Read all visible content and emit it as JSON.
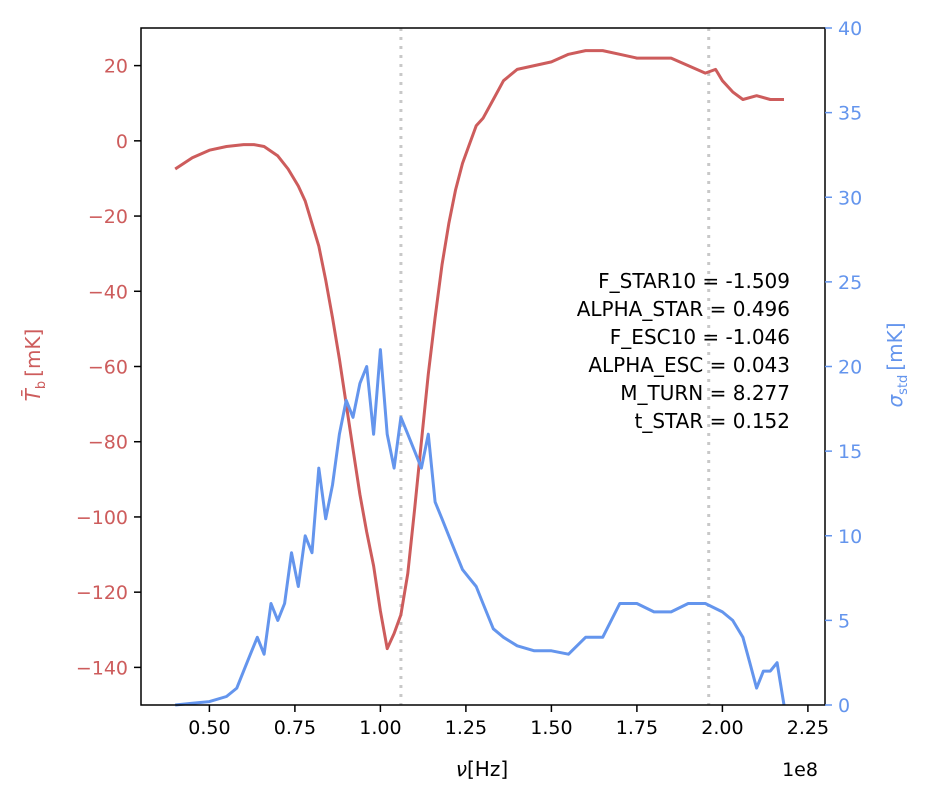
{
  "chart_data": {
    "type": "line",
    "xlabel_symbol": "ν",
    "xlabel_unit": "[Hz]",
    "x_offset_text": "1e8",
    "xlim": [
      0.3,
      2.3
    ],
    "x_ticks": [
      0.5,
      0.75,
      1.0,
      1.25,
      1.5,
      1.75,
      2.0,
      2.25
    ],
    "x_tick_labels": [
      "0.50",
      "0.75",
      "1.00",
      "1.25",
      "1.50",
      "1.75",
      "2.00",
      "2.25"
    ],
    "ylabel_left_symbol": "T̄",
    "ylabel_left_sub": "b",
    "ylabel_left_unit": "[mK]",
    "ylim_left": [
      -150,
      30
    ],
    "y_left_ticks": [
      20,
      0,
      -20,
      -40,
      -60,
      -80,
      -100,
      -120,
      -140
    ],
    "y_left_tick_labels": [
      "20",
      "0",
      "−20",
      "−40",
      "−60",
      "−80",
      "−100",
      "−120",
      "−140"
    ],
    "ylabel_right_symbol": "σ",
    "ylabel_right_sub": "std",
    "ylabel_right_unit": "[mK]",
    "ylim_right": [
      0,
      40
    ],
    "y_right_ticks": [
      0,
      5,
      10,
      15,
      20,
      25,
      30,
      35,
      40
    ],
    "y_right_tick_labels": [
      "0",
      "5",
      "10",
      "15",
      "20",
      "25",
      "30",
      "35",
      "40"
    ],
    "vlines": [
      1.06,
      1.96
    ],
    "colors": {
      "mean": "#cd5c5c",
      "std": "#6495ed",
      "vline": "#c8c8c8",
      "frame": "#000000"
    },
    "annotations": [
      "F_STAR10 = -1.509",
      "ALPHA_STAR = 0.496",
      "F_ESC10 = -1.046",
      "ALPHA_ESC = 0.043",
      "M_TURN = 8.277",
      "t_STAR = 0.152"
    ],
    "series": [
      {
        "axis": "left",
        "x": [
          0.4,
          0.45,
          0.5,
          0.55,
          0.6,
          0.63,
          0.66,
          0.7,
          0.73,
          0.76,
          0.78,
          0.8,
          0.82,
          0.84,
          0.86,
          0.88,
          0.9,
          0.92,
          0.94,
          0.96,
          0.98,
          1.0,
          1.02,
          1.04,
          1.06,
          1.08,
          1.1,
          1.12,
          1.14,
          1.16,
          1.18,
          1.2,
          1.22,
          1.24,
          1.26,
          1.28,
          1.3,
          1.33,
          1.36,
          1.4,
          1.45,
          1.5,
          1.55,
          1.6,
          1.65,
          1.7,
          1.75,
          1.8,
          1.85,
          1.9,
          1.95,
          1.98,
          2.0,
          2.03,
          2.06,
          2.1,
          2.14,
          2.18
        ],
        "values": [
          -7.5,
          -4.5,
          -2.5,
          -1.5,
          -1,
          -1,
          -1.5,
          -4,
          -7.5,
          -12,
          -16,
          -22,
          -28,
          -37,
          -47,
          -58,
          -70,
          -82,
          -94,
          -104,
          -113,
          -125,
          -135,
          -131,
          -126,
          -115,
          -98,
          -80,
          -62,
          -47,
          -33,
          -22,
          -13,
          -6,
          -1,
          4,
          6,
          11,
          16,
          19,
          20,
          21,
          23,
          24,
          24,
          23,
          22,
          22,
          22,
          20,
          18,
          19,
          16,
          13,
          11,
          12,
          11,
          11
        ]
      },
      {
        "axis": "right",
        "x": [
          0.4,
          0.45,
          0.5,
          0.55,
          0.58,
          0.6,
          0.62,
          0.64,
          0.66,
          0.68,
          0.7,
          0.72,
          0.74,
          0.76,
          0.78,
          0.8,
          0.82,
          0.84,
          0.86,
          0.88,
          0.9,
          0.92,
          0.94,
          0.96,
          0.98,
          1.0,
          1.02,
          1.04,
          1.06,
          1.08,
          1.1,
          1.12,
          1.14,
          1.16,
          1.18,
          1.2,
          1.22,
          1.24,
          1.26,
          1.28,
          1.3,
          1.33,
          1.36,
          1.4,
          1.45,
          1.5,
          1.55,
          1.6,
          1.65,
          1.7,
          1.75,
          1.8,
          1.85,
          1.9,
          1.95,
          2.0,
          2.03,
          2.06,
          2.08,
          2.1,
          2.12,
          2.14,
          2.16,
          2.18
        ],
        "values": [
          0,
          0.1,
          0.2,
          0.5,
          1,
          2,
          3,
          4,
          3,
          6,
          5,
          6,
          9,
          7,
          10,
          9,
          14,
          11,
          13,
          16,
          18,
          17,
          19,
          20,
          16,
          21,
          16,
          14,
          17,
          16,
          15,
          14,
          16,
          12,
          11,
          10,
          9,
          8,
          7.5,
          7,
          6,
          4.5,
          4,
          3.5,
          3.2,
          3.2,
          3,
          4,
          4,
          6,
          6,
          5.5,
          5.5,
          6,
          6,
          5.5,
          5,
          4,
          2.5,
          1,
          2,
          2,
          2.5,
          0
        ]
      }
    ]
  }
}
